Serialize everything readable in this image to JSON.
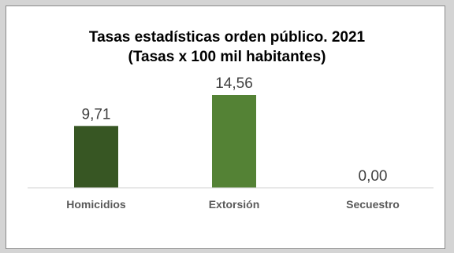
{
  "chart_data": {
    "type": "bar",
    "title": "Tasas estadísticas orden público. 2021",
    "subtitle": "(Tasas x 100 mil habitantes)",
    "categories": [
      "Homicidios",
      "Extorsión",
      "Secuestro"
    ],
    "values": [
      9.71,
      14.56,
      0.0
    ],
    "value_labels": [
      "9,71",
      "14,56",
      "0,00"
    ],
    "bar_colors": [
      "#375623",
      "#548235",
      "#70ad47"
    ],
    "ylim": [
      0,
      14.56
    ],
    "grid": false,
    "legend": "none"
  }
}
